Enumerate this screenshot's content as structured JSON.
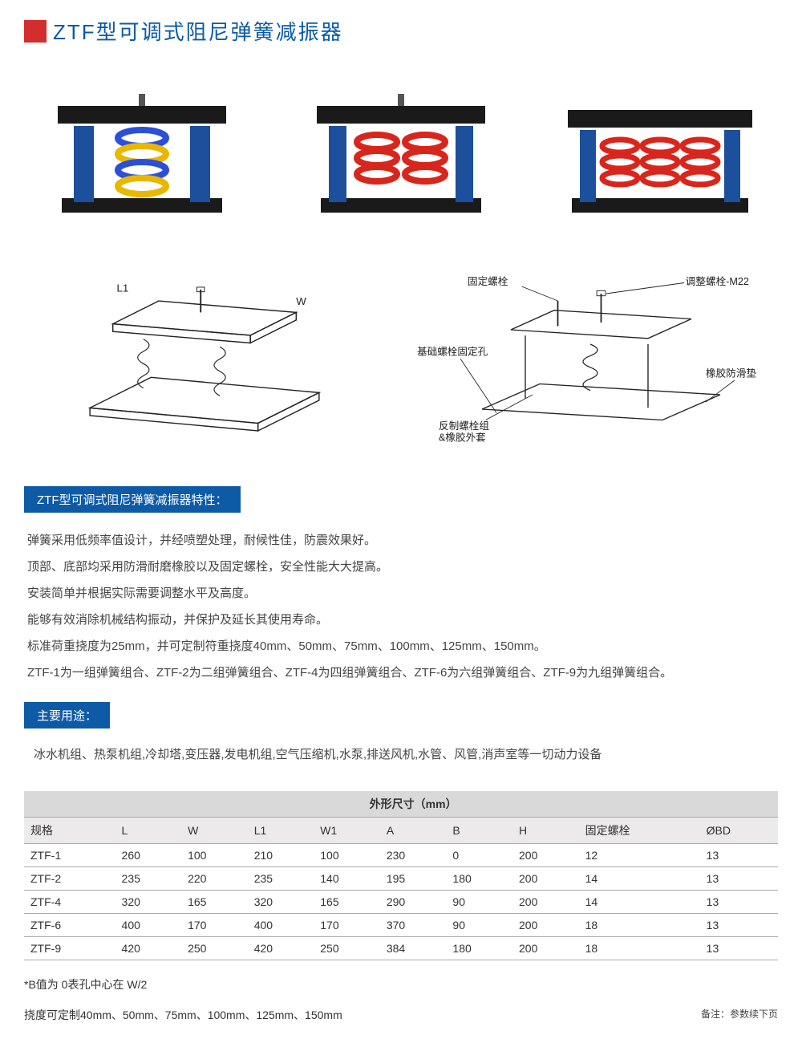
{
  "colors": {
    "accent_red": "#d32d2d",
    "title_blue": "#0a5aa8",
    "badge_blue": "#0d5aa6",
    "table_header_bg": "#d9d9d9",
    "table_sub_bg": "#eceaea"
  },
  "title": "ZTF型可调式阻尼弹簧减振器",
  "diagram_labels": {
    "l1": "L1",
    "w": "W",
    "fixed_bolt": "固定螺栓",
    "adjust_bolt": "调整螺栓-M22",
    "base_hole": "基础螺栓固定孔",
    "rubber_pad": "橡胶防滑垫",
    "counter_bolt": "反制螺栓组",
    "rubber_sleeve": "&橡胶外套"
  },
  "features_title": "ZTF型可调式阻尼弹簧减振器特性：",
  "features": [
    "弹簧采用低频率值设计，并经喷塑处理，耐候性佳，防震效果好。",
    "顶部、底部均采用防滑耐磨橡胶以及固定螺栓，安全性能大大提高。",
    "安装简单并根据实际需要调整水平及高度。",
    "能够有效消除机械结构振动，并保护及延长其使用寿命。",
    "标准荷重挠度为25mm，并可定制符重挠度40mm、50mm、75mm、100mm、125mm、150mm。",
    "ZTF-1为一组弹簧组合、ZTF-2为二组弹簧组合、ZTF-4为四组弹簧组合、ZTF-6为六组弹簧组合、ZTF-9为九组弹簧组合。"
  ],
  "uses_title": "主要用途：",
  "uses_text": "冰水机组、热泵机组,冷却塔,变压器,发电机组,空气压缩机,水泵,排送风机,水管、风管,消声室等一切动力设备",
  "table": {
    "group_header_blank_cols": 3,
    "group_header": "外形尺寸（mm）",
    "columns": [
      "规格",
      "L",
      "W",
      "L1",
      "W1",
      "A",
      "B",
      "H",
      "固定螺栓",
      "ØBD"
    ],
    "rows": [
      [
        "ZTF-1",
        "260",
        "100",
        "210",
        "100",
        "230",
        "0",
        "200",
        "12",
        "13"
      ],
      [
        "ZTF-2",
        "235",
        "220",
        "235",
        "140",
        "195",
        "180",
        "200",
        "14",
        "13"
      ],
      [
        "ZTF-4",
        "320",
        "165",
        "320",
        "165",
        "290",
        "90",
        "200",
        "14",
        "13"
      ],
      [
        "ZTF-6",
        "400",
        "170",
        "400",
        "170",
        "370",
        "90",
        "200",
        "18",
        "13"
      ],
      [
        "ZTF-9",
        "420",
        "250",
        "420",
        "250",
        "384",
        "180",
        "200",
        "18",
        "13"
      ]
    ]
  },
  "footnote1": "*B值为 0表孔中心在  W/2",
  "footnote2": "挠度可定制40mm、50mm、75mm、100mm、125mm、150mm",
  "remark": "备注：参数续下页"
}
